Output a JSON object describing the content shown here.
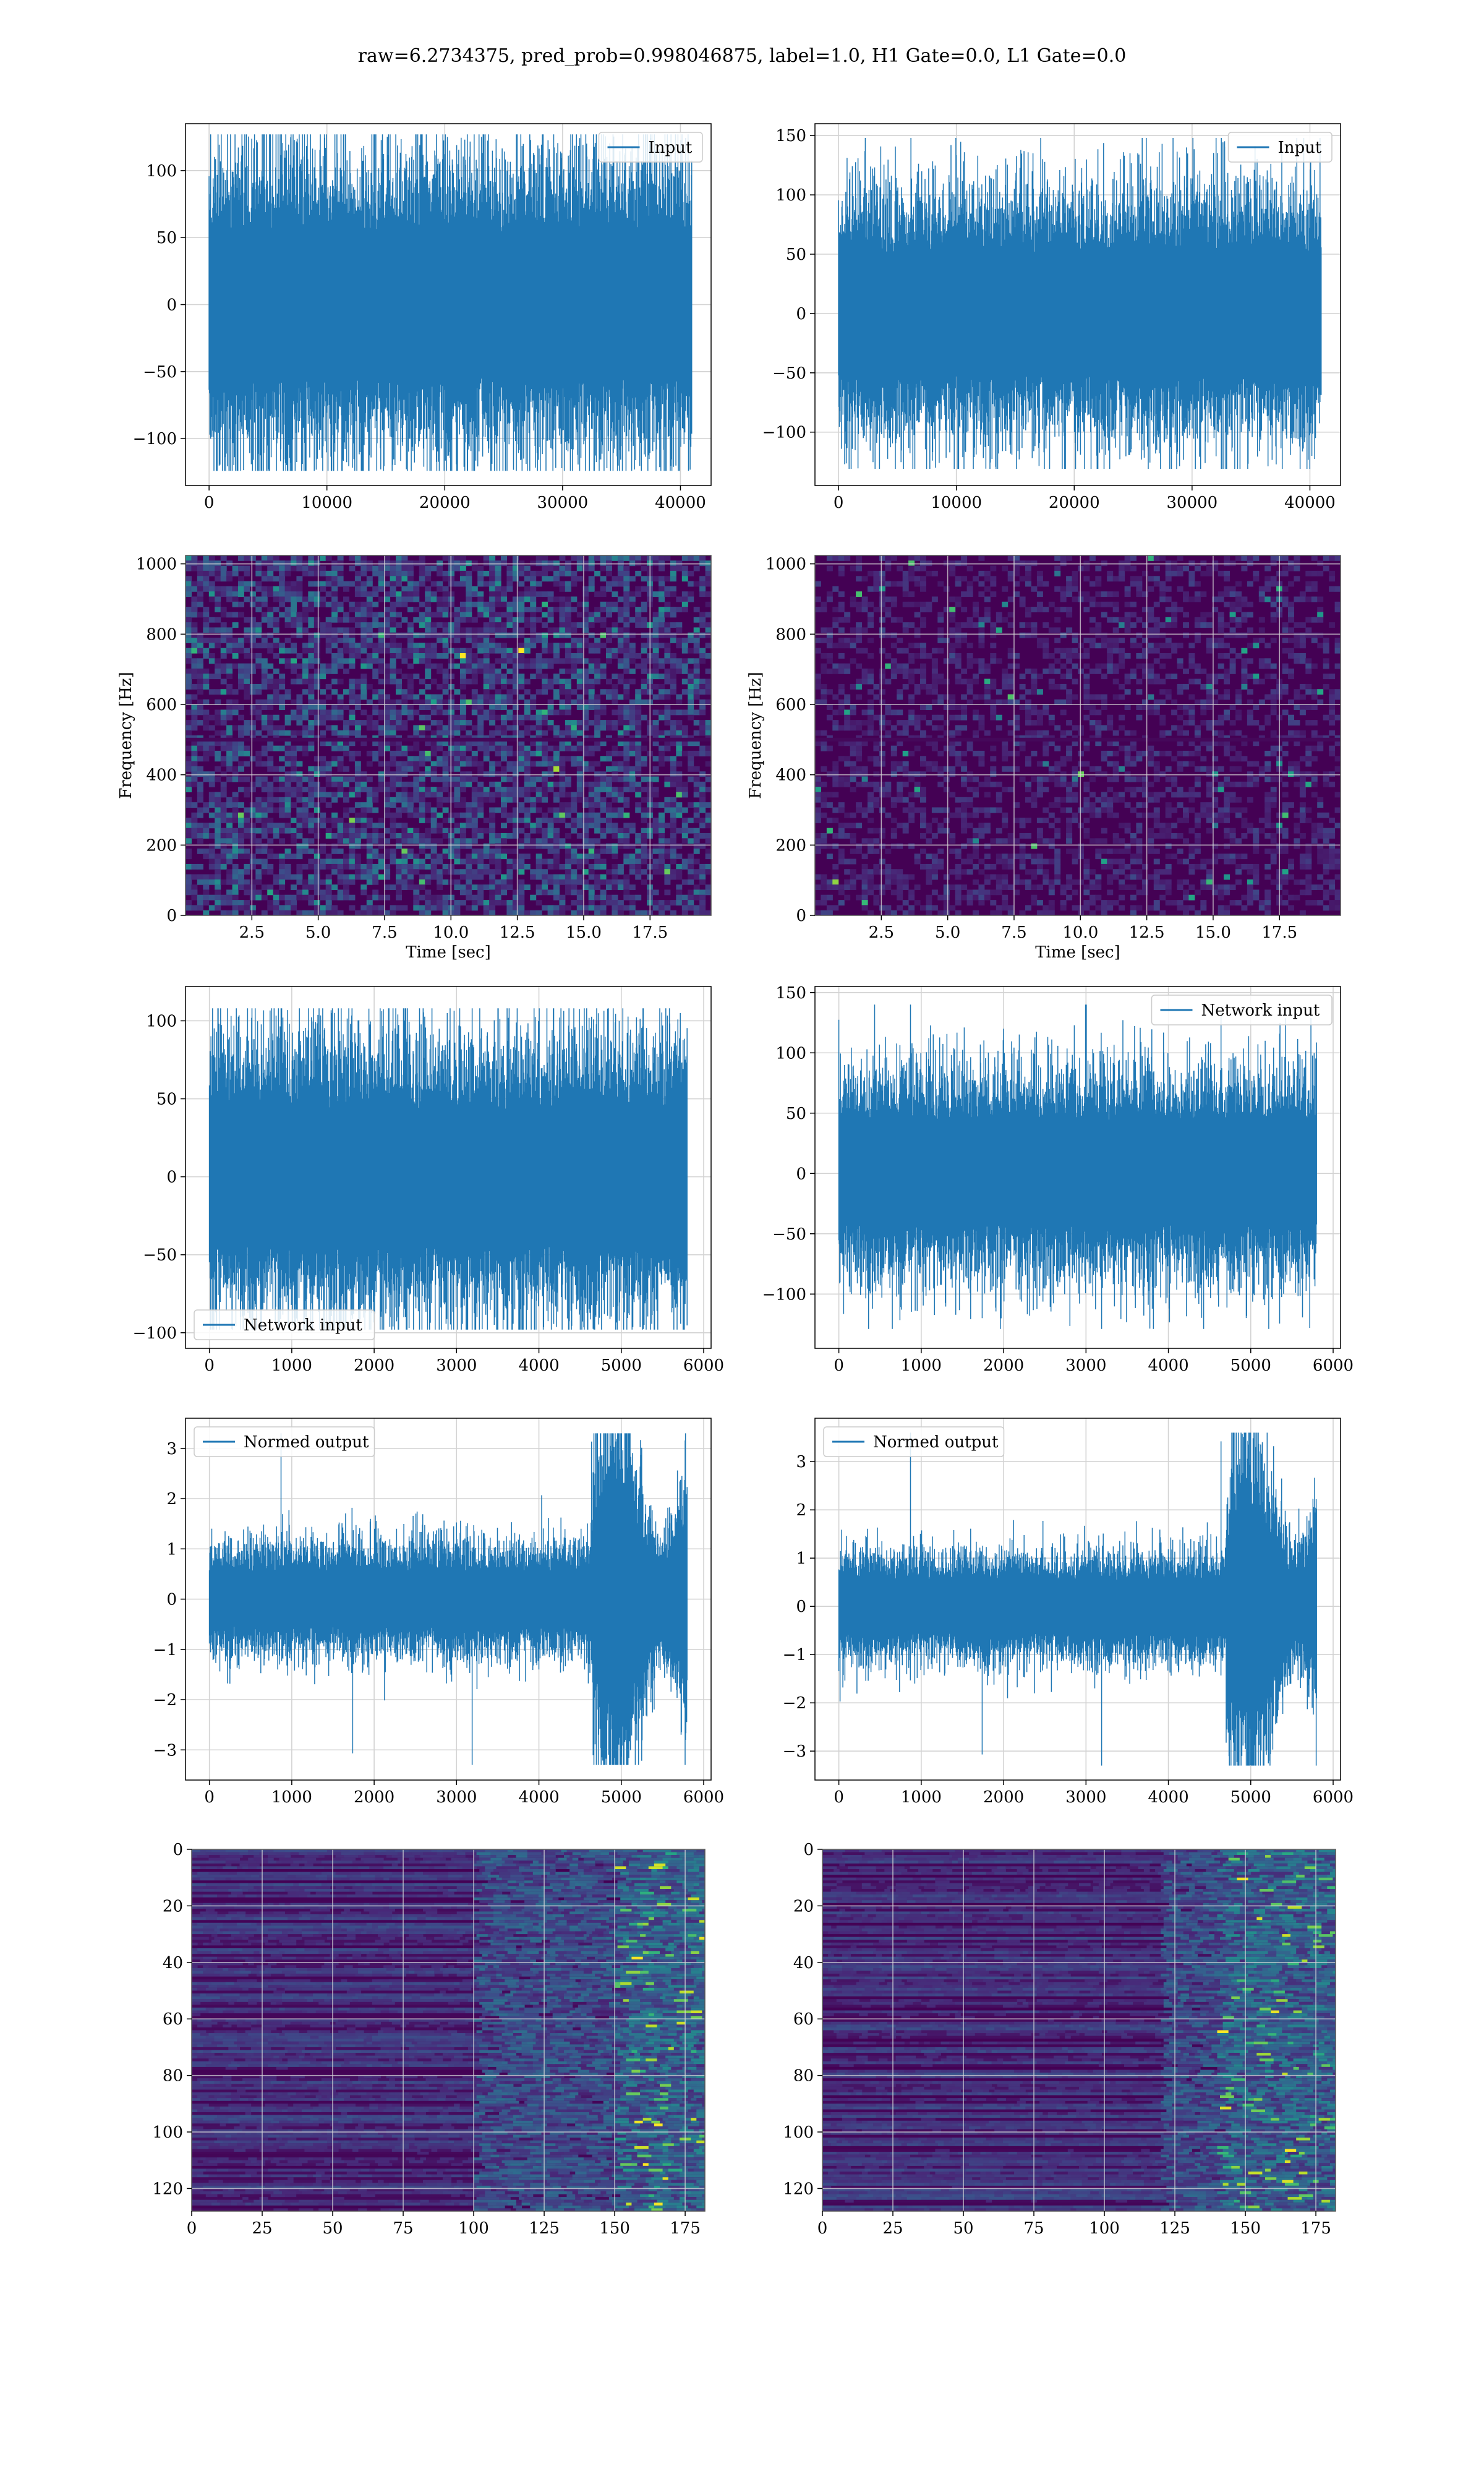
{
  "figure_title": "raw=6.2734375, pred_prob=0.998046875, label=1.0, H1 Gate=0.0, L1 Gate=0.0",
  "colors": {
    "line": "#1f77b4",
    "grid": "#d3d3d3",
    "viridis_bg": "#440154"
  },
  "chart_data": [
    {
      "id": "h1-input",
      "type": "line",
      "series": [
        {
          "name": "Input"
        }
      ],
      "legend_loc": "upper right",
      "xlim": [
        -2000,
        42600
      ],
      "ylim": [
        -135,
        135
      ],
      "xticks": [
        0,
        10000,
        20000,
        30000,
        40000
      ],
      "yticks": [
        -100,
        -50,
        0,
        50,
        100
      ],
      "n_points": 40960,
      "band_sigma": 35,
      "extreme_min": -124,
      "extreme_max": 127,
      "xlabel": "",
      "ylabel": ""
    },
    {
      "id": "l1-input",
      "type": "line",
      "series": [
        {
          "name": "Input"
        }
      ],
      "legend_loc": "upper right",
      "xlim": [
        -2000,
        42600
      ],
      "ylim": [
        -145,
        160
      ],
      "xticks": [
        0,
        10000,
        20000,
        30000,
        40000
      ],
      "yticks": [
        -100,
        -50,
        0,
        50,
        100,
        150
      ],
      "n_points": 40960,
      "band_sigma": 33,
      "extreme_min": -131,
      "extreme_max": 148,
      "xlabel": "",
      "ylabel": ""
    },
    {
      "id": "h1-spectrogram",
      "type": "heatmap",
      "xlim": [
        0,
        19.8
      ],
      "ylim": [
        0,
        1024
      ],
      "xticks": [
        2.5,
        5.0,
        7.5,
        10.0,
        12.5,
        15.0,
        17.5
      ],
      "yticks": [
        0,
        200,
        400,
        600,
        800,
        1000
      ],
      "xlabel": "Time [sec]",
      "ylabel": "Frequency [Hz]",
      "intensity": 0.55
    },
    {
      "id": "l1-spectrogram",
      "type": "heatmap",
      "xlim": [
        0,
        19.8
      ],
      "ylim": [
        0,
        1024
      ],
      "xticks": [
        2.5,
        5.0,
        7.5,
        10.0,
        12.5,
        15.0,
        17.5
      ],
      "yticks": [
        0,
        200,
        400,
        600,
        800,
        1000
      ],
      "xlabel": "Time [sec]",
      "ylabel": "Frequency [Hz]",
      "intensity": 0.25
    },
    {
      "id": "h1-network-input",
      "type": "line",
      "series": [
        {
          "name": "Network input"
        }
      ],
      "legend_loc": "lower left",
      "xlim": [
        -290,
        6090
      ],
      "ylim": [
        -110,
        122
      ],
      "xticks": [
        0,
        1000,
        2000,
        3000,
        4000,
        5000,
        6000
      ],
      "yticks": [
        -100,
        -50,
        0,
        50,
        100
      ],
      "n_points": 5800,
      "band_sigma": 28,
      "extreme_min": -98,
      "extreme_max": 108,
      "xlabel": "",
      "ylabel": ""
    },
    {
      "id": "l1-network-input",
      "type": "line",
      "series": [
        {
          "name": "Network input"
        }
      ],
      "legend_loc": "upper right",
      "xlim": [
        -290,
        6090
      ],
      "ylim": [
        -145,
        155
      ],
      "xticks": [
        0,
        1000,
        2000,
        3000,
        4000,
        5000,
        6000
      ],
      "yticks": [
        -100,
        -50,
        0,
        50,
        100,
        150
      ],
      "n_points": 5800,
      "band_sigma": 27,
      "extreme_min": -129,
      "extreme_max": 140,
      "xlabel": "",
      "ylabel": ""
    },
    {
      "id": "h1-normed-output",
      "type": "line",
      "series": [
        {
          "name": "Normed output"
        }
      ],
      "legend_loc": "upper left",
      "xlim": [
        -290,
        6090
      ],
      "ylim": [
        -3.6,
        3.6
      ],
      "xticks": [
        0,
        1000,
        2000,
        3000,
        4000,
        5000,
        6000
      ],
      "yticks": [
        -3,
        -2,
        -1,
        0,
        1,
        2,
        3
      ],
      "n_points": 5800,
      "band_sigma": 0.35,
      "burst_start": 4650,
      "burst_sigma": 1.1,
      "extreme_min": -3.3,
      "extreme_max": 3.3,
      "xlabel": "",
      "ylabel": ""
    },
    {
      "id": "l1-normed-output",
      "type": "line",
      "series": [
        {
          "name": "Normed output"
        }
      ],
      "legend_loc": "upper left",
      "xlim": [
        -290,
        6090
      ],
      "ylim": [
        -3.6,
        3.9
      ],
      "xticks": [
        0,
        1000,
        2000,
        3000,
        4000,
        5000,
        6000
      ],
      "yticks": [
        -3,
        -2,
        -1,
        0,
        1,
        2,
        3
      ],
      "n_points": 5800,
      "band_sigma": 0.35,
      "burst_start": 4700,
      "burst_sigma": 1.05,
      "extreme_min": -3.3,
      "extreme_max": 3.6,
      "xlabel": "",
      "ylabel": ""
    },
    {
      "id": "h1-feature-map",
      "type": "heatmap",
      "xlim": [
        0,
        182
      ],
      "ylim": [
        0,
        128
      ],
      "xticks": [
        0,
        25,
        50,
        75,
        100,
        125,
        150,
        175
      ],
      "yticks": [
        0,
        20,
        40,
        60,
        80,
        100,
        120
      ],
      "y_inverted": true,
      "activity_start": 100,
      "hot_start": 150,
      "xlabel": "",
      "ylabel": ""
    },
    {
      "id": "l1-feature-map",
      "type": "heatmap",
      "xlim": [
        0,
        182
      ],
      "ylim": [
        0,
        128
      ],
      "xticks": [
        0,
        25,
        50,
        75,
        100,
        125,
        150,
        175
      ],
      "yticks": [
        0,
        20,
        40,
        60,
        80,
        100,
        120
      ],
      "y_inverted": true,
      "activity_start": 120,
      "hot_start": 140,
      "xlabel": "",
      "ylabel": ""
    }
  ]
}
